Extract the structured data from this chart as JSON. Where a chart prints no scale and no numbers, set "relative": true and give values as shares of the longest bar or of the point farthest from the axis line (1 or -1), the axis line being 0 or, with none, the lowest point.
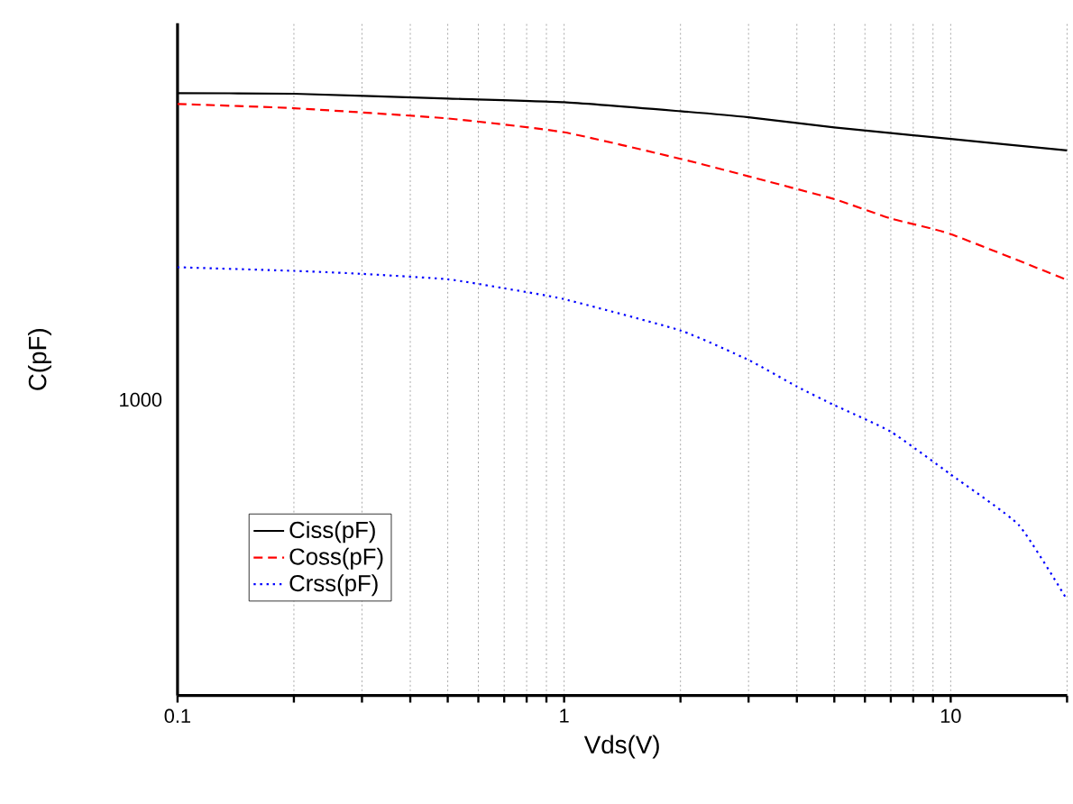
{
  "chart_data": {
    "type": "line",
    "xlabel": "Vds(V)",
    "ylabel": "C(pF)",
    "log": "x",
    "relative": true,
    "xlim": [
      0.1,
      20
    ],
    "xticks": [
      0.1,
      {
        "value": 0.2,
        "label": null
      },
      {
        "value": 0.3,
        "label": null
      },
      {
        "value": 0.4,
        "label": null
      },
      {
        "value": 0.5,
        "label": null
      },
      {
        "value": 0.6,
        "label": null
      },
      {
        "value": 0.7,
        "label": null
      },
      {
        "value": 0.8,
        "label": null
      },
      {
        "value": 0.9,
        "label": null
      },
      1,
      {
        "value": 2,
        "label": null
      },
      {
        "value": 3,
        "label": null
      },
      {
        "value": 4,
        "label": null
      },
      {
        "value": 5,
        "label": null
      },
      {
        "value": 6,
        "label": null
      },
      {
        "value": 7,
        "label": null
      },
      {
        "value": 8,
        "label": null
      },
      {
        "value": 9,
        "label": null
      },
      10,
      {
        "value": 20,
        "label": null
      }
    ],
    "annotations": [
      "1000"
    ],
    "grid": "x",
    "legend": "bottom left",
    "marker": "none",
    "series": [
      {
        "name": "Ciss(pF)",
        "color": "#000000",
        "line_style": "solid",
        "x": [
          0.1,
          0.2,
          0.5,
          1,
          2,
          3,
          5,
          10,
          20
        ],
        "values": [
          1,
          0.999,
          0.991,
          0.985,
          0.97,
          0.96,
          0.943,
          0.924,
          0.905
        ]
      },
      {
        "name": "Coss(pF)",
        "color": "#ff0000",
        "line_style": "dashed",
        "x": [
          0.1,
          0.2,
          0.5,
          1,
          2,
          3,
          5,
          7,
          10,
          20
        ],
        "values": [
          0.982,
          0.975,
          0.958,
          0.935,
          0.891,
          0.862,
          0.824,
          0.792,
          0.766,
          0.69
        ]
      },
      {
        "name": "Crss(pF)",
        "color": "#0000ff",
        "line_style": "dotted",
        "x": [
          0.1,
          0.2,
          0.3,
          0.5,
          0.7,
          1,
          2,
          3,
          4,
          5,
          7,
          10,
          15,
          20
        ],
        "values": [
          0.711,
          0.705,
          0.7,
          0.691,
          0.676,
          0.658,
          0.606,
          0.557,
          0.513,
          0.482,
          0.438,
          0.367,
          0.283,
          0.159
        ]
      }
    ]
  }
}
